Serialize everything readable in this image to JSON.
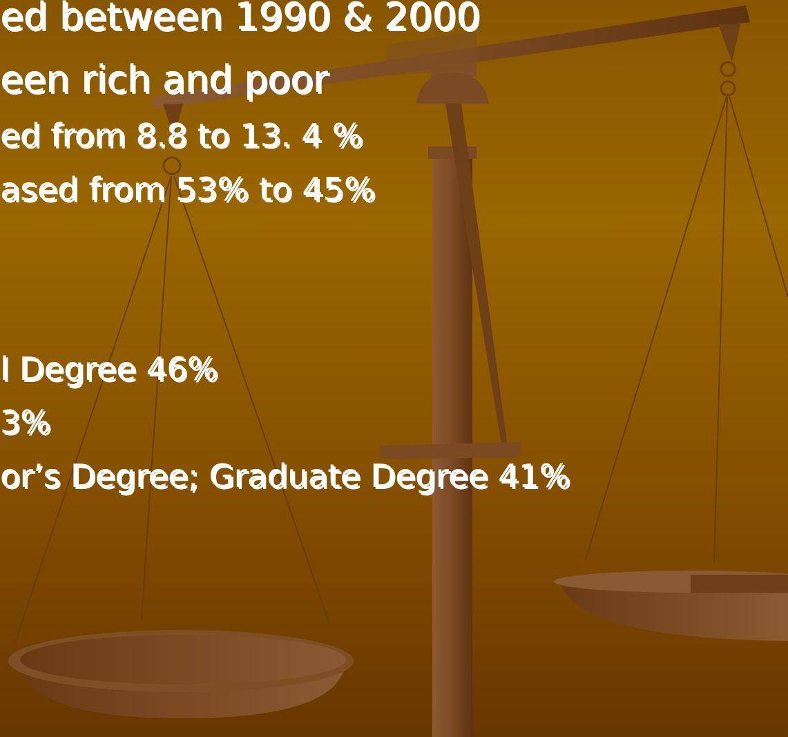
{
  "slide": {
    "lines": [
      "ed between 1990 & 2000",
      "een rich and poor",
      "ed from 8.8 to 13. 4 %",
      "ased from 53% to 45%",
      "l Degree 46%",
      "3%",
      "or’s Degree; Graduate Degree 41%"
    ]
  }
}
